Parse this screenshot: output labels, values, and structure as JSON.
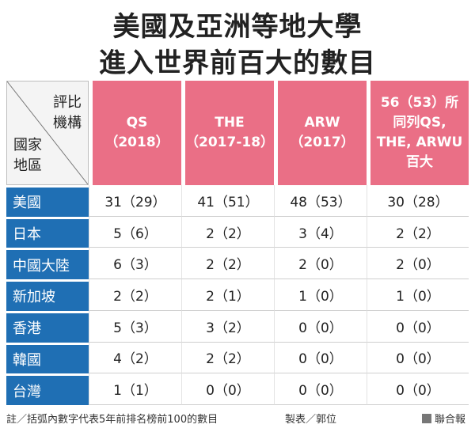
{
  "title": {
    "line1": "美國及亞洲等地大學",
    "line2": "進入世界前百大的數目"
  },
  "table": {
    "corner_top_lines": [
      "評比",
      "機構"
    ],
    "corner_bottom_lines": [
      "國家",
      "地區"
    ],
    "headers": [
      [
        "QS",
        "（2018）"
      ],
      [
        "THE",
        "（2017-18）"
      ],
      [
        "ARW",
        "（2017）"
      ],
      [
        "56（53）所",
        "同列QS,",
        "THE, ARWU",
        "百大"
      ]
    ],
    "rows": [
      {
        "label": "美國",
        "cells": [
          "31（29）",
          "41（51）",
          "48（53）",
          "30（28）"
        ]
      },
      {
        "label": "日本",
        "cells": [
          "5（6）",
          "2（2）",
          "3（4）",
          "2（2）"
        ]
      },
      {
        "label": "中國大陸",
        "cells": [
          "6（3）",
          "2（2）",
          "2（0）",
          "2（0）"
        ]
      },
      {
        "label": "新加坡",
        "cells": [
          "2（2）",
          "2（1）",
          "1（0）",
          "1（0）"
        ]
      },
      {
        "label": "香港",
        "cells": [
          "5（3）",
          "3（2）",
          "0（0）",
          "0（0）"
        ]
      },
      {
        "label": "韓國",
        "cells": [
          "4（2）",
          "2（2）",
          "0（0）",
          "0（0）"
        ]
      },
      {
        "label": "台灣",
        "cells": [
          "1（1）",
          "0（0）",
          "0（0）",
          "0（0）"
        ]
      }
    ]
  },
  "footer": {
    "note": "註／括弧內數字代表5年前排名榜前100的數目",
    "credit": "製表／郭位",
    "source": "聯合報",
    "source_icon": "square-icon"
  },
  "colors": {
    "header_bg": "#ea6f86",
    "row_label_bg": "#1f6fb4"
  }
}
